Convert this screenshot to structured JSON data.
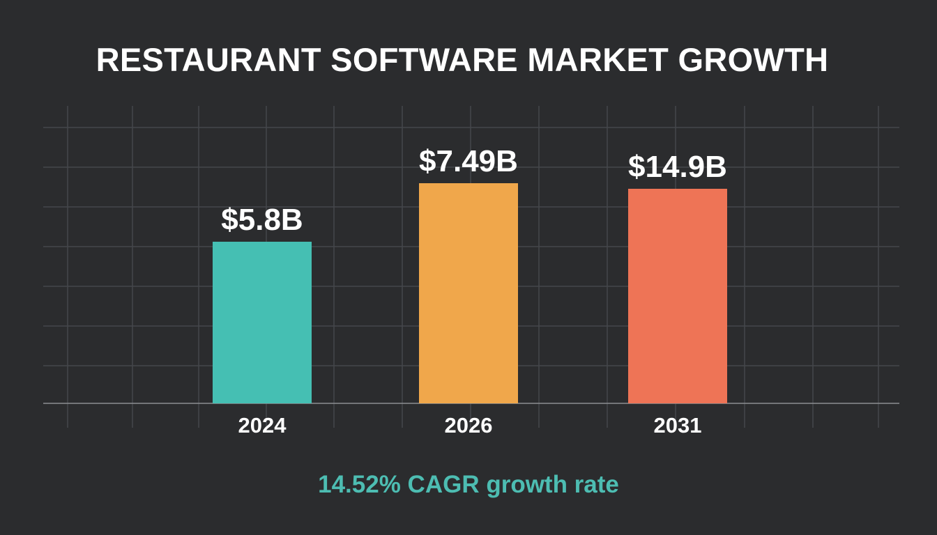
{
  "chart_data": {
    "type": "bar",
    "title": "RESTAURANT SOFTWARE MARKET GROWTH",
    "subtitle": "14.52% CAGR growth rate",
    "categories": [
      "2024",
      "2026",
      "2031"
    ],
    "values": [
      5.8,
      7.49,
      14.9
    ],
    "data_labels": [
      "$5.8B",
      "$7.49B",
      "$14.9B"
    ],
    "colors": [
      "#45bfb3",
      "#f0a74b",
      "#ee7456"
    ],
    "subtitle_color": "#4dbdb2",
    "grid": true,
    "legend": "none",
    "xlabel": "",
    "ylabel": ""
  }
}
